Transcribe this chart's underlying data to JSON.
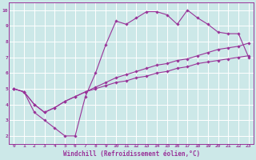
{
  "xlabel": "Windchill (Refroidissement éolien,°C)",
  "bg_color": "#cce8e8",
  "grid_color": "#ffffff",
  "line_color": "#993399",
  "line1_x": [
    0,
    1,
    2,
    3,
    4,
    5,
    6,
    7,
    8,
    9,
    10,
    11,
    12,
    13,
    14,
    15,
    16,
    17,
    18,
    19,
    20,
    21,
    22,
    23
  ],
  "line1_y": [
    5.0,
    4.8,
    3.5,
    3.0,
    2.5,
    2.0,
    2.0,
    4.5,
    6.0,
    7.8,
    9.3,
    9.1,
    9.5,
    9.9,
    9.9,
    9.7,
    9.1,
    10.0,
    9.5,
    9.1,
    8.6,
    8.5,
    8.5,
    7.0
  ],
  "line2_x": [
    0,
    1,
    2,
    3,
    4,
    5,
    6,
    7,
    8,
    9,
    10,
    11,
    12,
    13,
    14,
    15,
    16,
    17,
    18,
    19,
    20,
    21,
    22,
    23
  ],
  "line2_y": [
    5.0,
    4.8,
    4.0,
    3.5,
    3.8,
    4.2,
    4.5,
    4.8,
    5.1,
    5.4,
    5.7,
    5.9,
    6.1,
    6.3,
    6.5,
    6.6,
    6.8,
    6.9,
    7.1,
    7.3,
    7.5,
    7.6,
    7.7,
    7.9
  ],
  "line3_x": [
    0,
    1,
    2,
    3,
    4,
    5,
    6,
    7,
    8,
    9,
    10,
    11,
    12,
    13,
    14,
    15,
    16,
    17,
    18,
    19,
    20,
    21,
    22,
    23
  ],
  "line3_y": [
    5.0,
    4.8,
    4.0,
    3.5,
    3.8,
    4.2,
    4.5,
    4.8,
    5.0,
    5.2,
    5.4,
    5.5,
    5.7,
    5.8,
    6.0,
    6.1,
    6.3,
    6.4,
    6.6,
    6.7,
    6.8,
    6.9,
    7.0,
    7.1
  ],
  "xlim": [
    -0.5,
    23.5
  ],
  "ylim": [
    1.5,
    10.5
  ],
  "yticks": [
    2,
    3,
    4,
    5,
    6,
    7,
    8,
    9,
    10
  ],
  "xticks": [
    0,
    1,
    2,
    3,
    4,
    5,
    6,
    7,
    8,
    9,
    10,
    11,
    12,
    13,
    14,
    15,
    16,
    17,
    18,
    19,
    20,
    21,
    22,
    23
  ],
  "xlabel_fontsize": 5.5,
  "tick_fontsize": 4.5
}
